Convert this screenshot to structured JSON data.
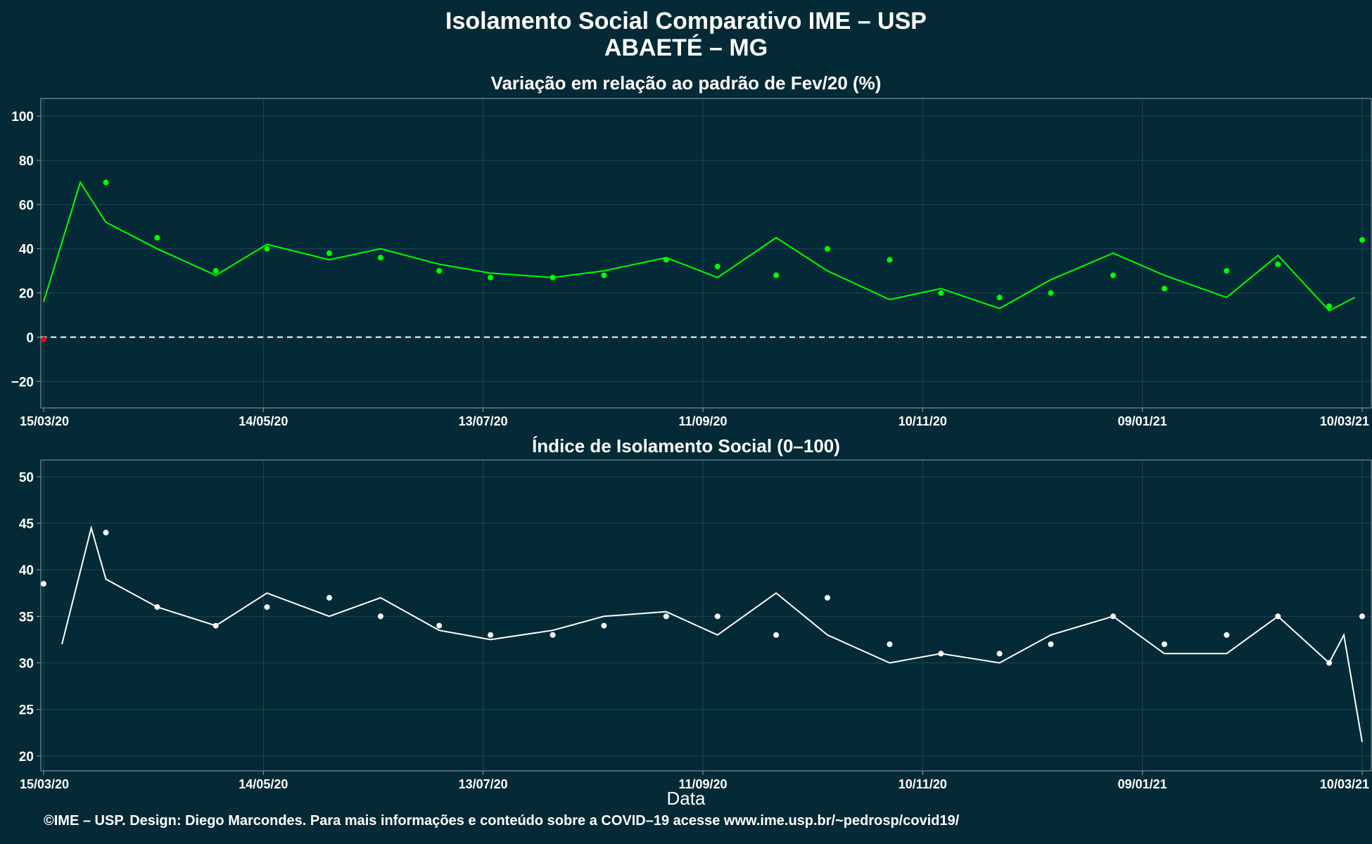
{
  "title": "Isolamento Social Comparativo IME – USP",
  "subtitle": "ABAETÉ – MG",
  "xlabel": "Data",
  "footer": "©IME – USP. Design: Diego Marcondes. Para mais informações e conteúdo sobre a COVID–19 acesse www.ime.usp.br/~pedrosp/covid19/",
  "colors": {
    "background": "#032a36",
    "positive": "#00ff00",
    "negative": "#ff0000",
    "index": "#ffffff",
    "grid": "#1f4753",
    "frame": "#8aa0a8"
  },
  "chart_data": [
    {
      "type": "scatter",
      "title": "Variação em relação ao padrão de Fev/20 (%)",
      "xlabel": "",
      "ylabel": "",
      "x_start": "15/03/20",
      "x_end": "10/03/21",
      "x_ticks": [
        "15/03/20",
        "14/05/20",
        "13/07/20",
        "11/09/20",
        "10/11/20",
        "09/01/21",
        "10/03/21"
      ],
      "y_ticks": [
        -20,
        0,
        20,
        40,
        60,
        80,
        100
      ],
      "ylim": [
        -32,
        108
      ],
      "reference_line": 0,
      "grid": true,
      "legend": "none",
      "series": [
        {
          "kind": "points",
          "x": [
            "15/03/20",
            "01/04/20",
            "15/04/20",
            "01/05/20",
            "15/05/20",
            "01/06/20",
            "15/06/20",
            "01/07/20",
            "15/07/20",
            "01/08/20",
            "15/08/20",
            "01/09/20",
            "15/09/20",
            "01/10/20",
            "15/10/20",
            "01/11/20",
            "15/11/20",
            "01/12/20",
            "15/12/20",
            "01/01/21",
            "15/01/21",
            "01/02/21",
            "15/02/21",
            "01/03/21",
            "10/03/21"
          ],
          "values": [
            -1,
            70,
            45,
            30,
            40,
            38,
            36,
            30,
            27,
            27,
            28,
            35,
            32,
            28,
            40,
            35,
            20,
            18,
            20,
            28,
            22,
            30,
            33,
            14,
            44
          ]
        },
        {
          "kind": "moving_average",
          "x": [
            "15/03/20",
            "25/03/20",
            "01/04/20",
            "15/04/20",
            "01/05/20",
            "15/05/20",
            "01/06/20",
            "15/06/20",
            "01/07/20",
            "15/07/20",
            "01/08/20",
            "15/08/20",
            "01/09/20",
            "15/09/20",
            "01/10/20",
            "15/10/20",
            "01/11/20",
            "15/11/20",
            "01/12/20",
            "15/12/20",
            "01/01/21",
            "15/01/21",
            "01/02/21",
            "15/02/21",
            "01/03/21",
            "08/03/21"
          ],
          "values": [
            16,
            70,
            52,
            40,
            28,
            42,
            35,
            40,
            33,
            29,
            27,
            30,
            36,
            27,
            45,
            30,
            17,
            22,
            13,
            26,
            38,
            28,
            18,
            37,
            12,
            18
          ]
        }
      ]
    },
    {
      "type": "scatter",
      "title": "Índice de Isolamento Social (0–100)",
      "xlabel": "Data",
      "ylabel": "",
      "x_start": "15/03/20",
      "x_end": "10/03/21",
      "x_ticks": [
        "15/03/20",
        "14/05/20",
        "13/07/20",
        "11/09/20",
        "10/11/20",
        "09/01/21",
        "10/03/21"
      ],
      "y_ticks": [
        20,
        25,
        30,
        35,
        40,
        45,
        50
      ],
      "ylim": [
        18.4,
        51.8
      ],
      "grid": true,
      "legend": "none",
      "series": [
        {
          "kind": "points",
          "x": [
            "15/03/20",
            "01/04/20",
            "15/04/20",
            "01/05/20",
            "15/05/20",
            "01/06/20",
            "15/06/20",
            "01/07/20",
            "15/07/20",
            "01/08/20",
            "15/08/20",
            "01/09/20",
            "15/09/20",
            "01/10/20",
            "15/10/20",
            "01/11/20",
            "15/11/20",
            "01/12/20",
            "15/12/20",
            "01/01/21",
            "15/01/21",
            "01/02/21",
            "15/02/21",
            "01/03/21",
            "10/03/21"
          ],
          "values": [
            38.5,
            44,
            36,
            34,
            36,
            37,
            35,
            34,
            33,
            33,
            34,
            35,
            35,
            33,
            37,
            32,
            31,
            31,
            32,
            35,
            32,
            33,
            35,
            30,
            35
          ]
        },
        {
          "kind": "moving_average",
          "x": [
            "20/03/20",
            "28/03/20",
            "01/04/20",
            "15/04/20",
            "01/05/20",
            "15/05/20",
            "01/06/20",
            "15/06/20",
            "01/07/20",
            "15/07/20",
            "01/08/20",
            "15/08/20",
            "01/09/20",
            "15/09/20",
            "01/10/20",
            "15/10/20",
            "01/11/20",
            "15/11/20",
            "01/12/20",
            "15/12/20",
            "01/01/21",
            "15/01/21",
            "01/02/21",
            "15/02/21",
            "01/03/21",
            "05/03/21",
            "10/03/21"
          ],
          "values": [
            32,
            44.5,
            39,
            36,
            34,
            37.5,
            35,
            37,
            33.5,
            32.5,
            33.5,
            35,
            35.5,
            33,
            37.5,
            33,
            30,
            31,
            30,
            33,
            35,
            31,
            31,
            35,
            30,
            33,
            21.5
          ]
        }
      ]
    }
  ]
}
